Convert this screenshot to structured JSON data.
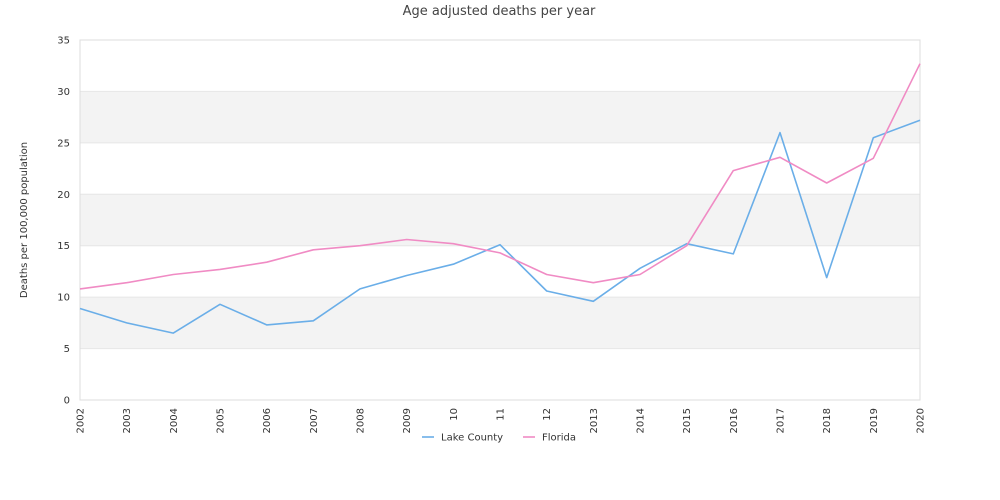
{
  "chart_data": {
    "type": "line",
    "title": "Age adjusted deaths per year",
    "xlabel": "",
    "ylabel": "Deaths per 100,000 population",
    "ylim": [
      0,
      35
    ],
    "yticks": [
      0,
      5,
      10,
      15,
      20,
      25,
      30,
      35
    ],
    "categories": [
      "2002",
      "2003",
      "2004",
      "2005",
      "2006",
      "2007",
      "2008",
      "2009",
      "10",
      "11",
      "12",
      "2013",
      "2014",
      "2015",
      "2016",
      "2017",
      "2018",
      "2019",
      "2020"
    ],
    "grid": "horizontal bands",
    "legend_position": "bottom",
    "series": [
      {
        "name": "Lake County",
        "color": "#6aaee8",
        "values": [
          8.9,
          7.5,
          6.5,
          9.3,
          7.3,
          7.7,
          10.8,
          12.1,
          13.2,
          15.1,
          10.6,
          9.6,
          12.8,
          15.2,
          14.2,
          26.0,
          11.9,
          25.5,
          27.2
        ]
      },
      {
        "name": "Florida",
        "color": "#f08bc4",
        "values": [
          10.8,
          11.4,
          12.2,
          12.7,
          13.4,
          14.6,
          15.0,
          15.6,
          15.2,
          14.3,
          12.2,
          11.4,
          12.2,
          15.0,
          22.3,
          23.6,
          21.1,
          23.5,
          32.7
        ]
      }
    ]
  }
}
